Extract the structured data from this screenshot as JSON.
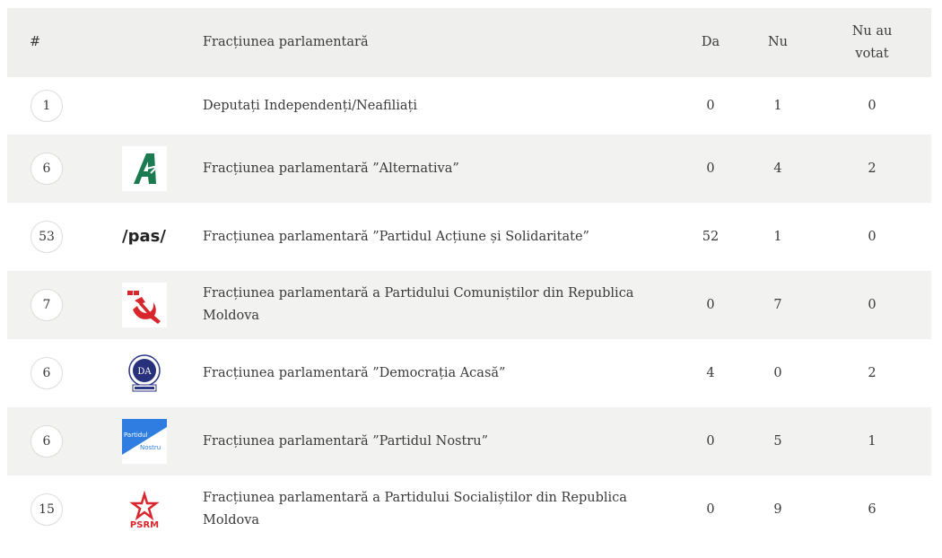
{
  "header": {
    "num": "#",
    "faction": "Fracțiunea parlamentară",
    "da": "Da",
    "nu": "Nu",
    "nu_au_votat": "Nu au votat"
  },
  "rows": [
    {
      "members": "1",
      "logo": "",
      "name": "Deputați Independenți/Neafiliați",
      "da": "0",
      "nu": "1",
      "abst": "0"
    },
    {
      "members": "6",
      "logo": "alternativa-logo",
      "name": "Fracțiunea parlamentară ”Alternativa”",
      "da": "0",
      "nu": "4",
      "abst": "2"
    },
    {
      "members": "53",
      "logo": "pas-logo",
      "logo_text": "/pas/",
      "name": "Fracțiunea parlamentară ”Partidul Acțiune și Solidaritate”",
      "da": "52",
      "nu": "1",
      "abst": "0"
    },
    {
      "members": "7",
      "logo": "pcrm-logo",
      "name": "Fracțiunea parlamentară a Partidului Comuniștilor din Republica Moldova",
      "da": "0",
      "nu": "7",
      "abst": "0"
    },
    {
      "members": "6",
      "logo": "democratia-acasa-logo",
      "logo_text": "DA",
      "name": "Fracțiunea parlamentară ”Democrația Acasă”",
      "da": "4",
      "nu": "0",
      "abst": "2"
    },
    {
      "members": "6",
      "logo": "partidul-nostru-logo",
      "logo_text": "Partidul Nostru",
      "name": "Fracțiunea parlamentară ”Partidul Nostru”",
      "da": "0",
      "nu": "5",
      "abst": "1"
    },
    {
      "members": "15",
      "logo": "psrm-logo",
      "logo_text": "PSRM",
      "name": "Fracțiunea parlamentară a Partidului Socialiștilor din Republica Moldova",
      "da": "0",
      "nu": "9",
      "abst": "6"
    }
  ]
}
